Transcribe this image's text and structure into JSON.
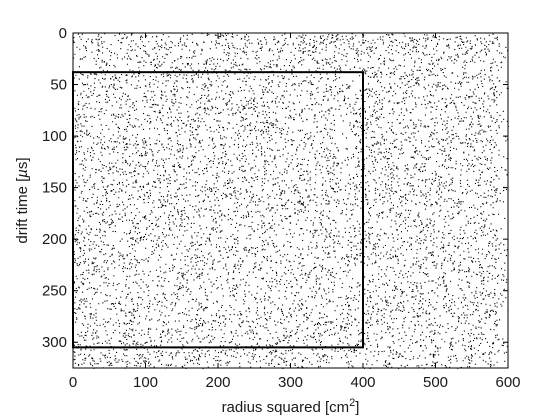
{
  "chart_data": {
    "type": "scatter",
    "title": "",
    "xlabel": "radius squared [cm",
    "xlabel_sup": "2",
    "xlabel_close": "]",
    "ylabel_pre": "drift time [",
    "ylabel_mu": "µ",
    "ylabel_post": "s]",
    "xlim": [
      0,
      600
    ],
    "ylim": [
      0,
      325
    ],
    "y_inverted": true,
    "grid": false,
    "x_ticks": [
      0,
      100,
      200,
      300,
      400,
      500,
      600
    ],
    "y_ticks": [
      0,
      50,
      100,
      150,
      200,
      250,
      300
    ],
    "x_tick_labels": [
      "0",
      "100",
      "200",
      "300",
      "400",
      "500",
      "600"
    ],
    "y_tick_labels": [
      "0",
      "50",
      "100",
      "150",
      "200",
      "250",
      "300"
    ],
    "marker_color": "#000000",
    "points_distribution": "approximately uniform scatter of single-pixel events filling r^2 0-600 cm^2 and drift time 0-325 us, slightly sparser near r^2 = 600",
    "approx_point_count": 14000,
    "cut_box": {
      "x": [
        0,
        400
      ],
      "y": [
        38,
        305
      ],
      "color": "#000000"
    }
  }
}
